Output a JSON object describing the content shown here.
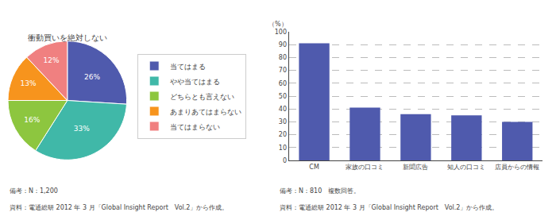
{
  "chart_data": [
    {
      "type": "pie",
      "title": "衝動買いを絶対しない",
      "categories": [
        "当てはまる",
        "やや当てはまる",
        "どちらとも言えない",
        "あまりあてはまらない",
        "当てはまらない"
      ],
      "values": [
        26,
        33,
        16,
        13,
        12
      ],
      "value_labels": [
        "26%",
        "33%",
        "16%",
        "13%",
        "12%"
      ],
      "colors": [
        "#4f5aad",
        "#40b8a8",
        "#8dc63f",
        "#f7941d",
        "#f08080"
      ],
      "data_labels": true,
      "legend": "right",
      "annotations": [
        "備考：N：1,200",
        "資料：電通総研 2012 年 3 月「Global Insight Report　Vol.2」から作成。"
      ]
    },
    {
      "type": "bar",
      "categories": [
        "CM",
        "家族の口コミ",
        "新聞広告",
        "知人の口コミ",
        "店員からの情報"
      ],
      "values": [
        91,
        41,
        36,
        35,
        30
      ],
      "color": "#4f5aad",
      "ylabel": "（%）",
      "ylim": [
        0,
        100
      ],
      "yticks": [
        0,
        10,
        20,
        30,
        40,
        50,
        60,
        70,
        80,
        90,
        100
      ],
      "grid": true,
      "annotations": [
        "備考：N：810　複数回答。",
        "資料：電通総研 2012 年 3 月「Global Insight Report　Vol.2」から作成。"
      ]
    }
  ]
}
